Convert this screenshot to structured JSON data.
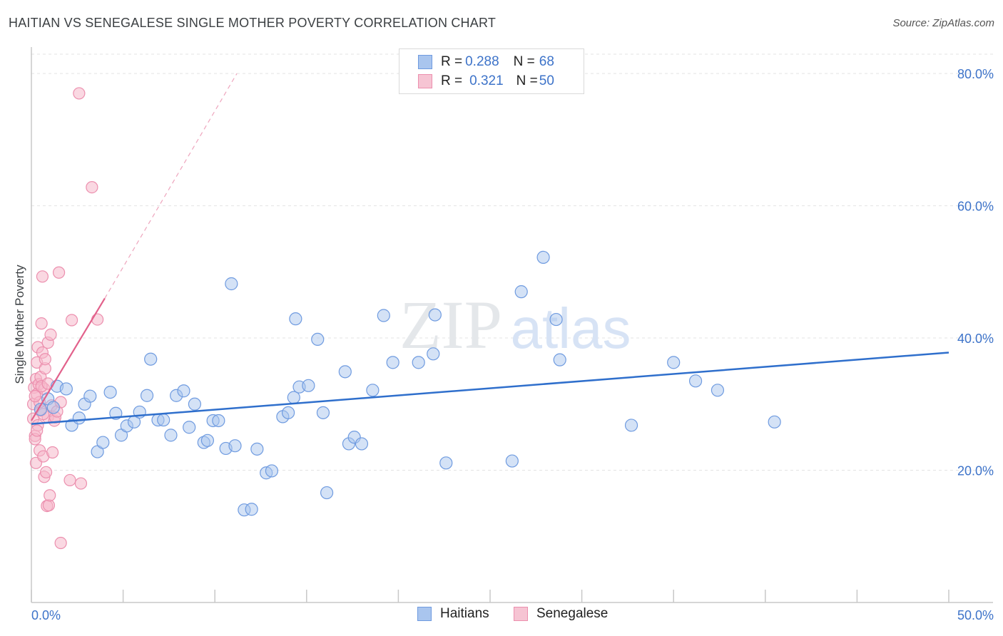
{
  "title": "HAITIAN VS SENEGALESE SINGLE MOTHER POVERTY CORRELATION CHART",
  "source": "Source: ZipAtlas.com",
  "watermark": {
    "zip": "ZIP",
    "atlas": "atlas"
  },
  "legend": {
    "rows": [
      {
        "r_label": "R = ",
        "r_value": "0.288",
        "n_label": "N = ",
        "n_value": "68"
      },
      {
        "r_label": "R = ",
        "r_value": "0.321",
        "n_label": "N = ",
        "n_value": "50"
      }
    ]
  },
  "bottom_legend": {
    "haitians": "Haitians",
    "senegalese": "Senegalese"
  },
  "colors": {
    "blue_fill": "#a9c5ee",
    "blue_stroke": "#6f9be0",
    "blue_line": "#2f6fcc",
    "pink_fill": "#f6b8cb",
    "pink_stroke": "#ec8fae",
    "pink_line": "#e2618b",
    "tick_text": "#3d73c9",
    "grid": "#e3e3e3"
  },
  "chart_data": {
    "type": "scatter",
    "title": "HAITIAN VS SENEGALESE SINGLE MOTHER POVERTY CORRELATION CHART",
    "xlabel": "",
    "ylabel": "Single Mother Poverty",
    "xlim": [
      0,
      50
    ],
    "ylim": [
      0,
      84
    ],
    "x_tick_labels": [
      "0.0%",
      "50.0%"
    ],
    "y_ticks": [
      20,
      40,
      60,
      80
    ],
    "y_tick_labels": [
      "20.0%",
      "40.0%",
      "60.0%",
      "80.0%"
    ],
    "grid": true,
    "legend_position": "top-center",
    "series": [
      {
        "name": "Haitians",
        "r": 0.288,
        "n": 68,
        "trend": {
          "x": [
            0,
            50
          ],
          "y": [
            27.0,
            37.8
          ],
          "style": "solid"
        },
        "points": [
          [
            0.5,
            29.2
          ],
          [
            0.9,
            30.8
          ],
          [
            1.2,
            29.5
          ],
          [
            1.4,
            32.7
          ],
          [
            1.9,
            32.3
          ],
          [
            2.2,
            26.8
          ],
          [
            2.6,
            27.9
          ],
          [
            2.9,
            30.0
          ],
          [
            3.2,
            31.2
          ],
          [
            3.6,
            22.8
          ],
          [
            3.9,
            24.2
          ],
          [
            4.3,
            31.8
          ],
          [
            4.6,
            28.6
          ],
          [
            4.9,
            25.3
          ],
          [
            5.2,
            26.7
          ],
          [
            5.6,
            27.3
          ],
          [
            5.9,
            28.8
          ],
          [
            6.3,
            31.3
          ],
          [
            6.5,
            36.8
          ],
          [
            6.9,
            27.6
          ],
          [
            7.2,
            27.6
          ],
          [
            7.6,
            25.3
          ],
          [
            7.9,
            31.3
          ],
          [
            8.3,
            32.0
          ],
          [
            8.6,
            26.5
          ],
          [
            8.9,
            30.0
          ],
          [
            9.4,
            24.2
          ],
          [
            9.6,
            24.5
          ],
          [
            9.9,
            27.5
          ],
          [
            10.2,
            27.5
          ],
          [
            10.6,
            23.3
          ],
          [
            10.9,
            48.2
          ],
          [
            11.1,
            23.7
          ],
          [
            11.6,
            14.0
          ],
          [
            12.0,
            14.1
          ],
          [
            12.3,
            23.2
          ],
          [
            12.8,
            19.6
          ],
          [
            13.1,
            19.9
          ],
          [
            13.7,
            28.1
          ],
          [
            14.0,
            28.7
          ],
          [
            14.3,
            31.0
          ],
          [
            14.6,
            32.6
          ],
          [
            15.1,
            32.8
          ],
          [
            15.6,
            39.8
          ],
          [
            15.9,
            28.7
          ],
          [
            16.1,
            16.6
          ],
          [
            17.1,
            34.9
          ],
          [
            17.3,
            24.0
          ],
          [
            17.6,
            25.0
          ],
          [
            18.0,
            24.0
          ],
          [
            18.6,
            32.1
          ],
          [
            19.2,
            43.4
          ],
          [
            19.7,
            36.3
          ],
          [
            21.1,
            36.3
          ],
          [
            21.9,
            37.6
          ],
          [
            22.0,
            43.5
          ],
          [
            22.6,
            21.1
          ],
          [
            26.2,
            21.4
          ],
          [
            26.7,
            47.0
          ],
          [
            27.9,
            52.2
          ],
          [
            28.6,
            42.8
          ],
          [
            28.8,
            36.7
          ],
          [
            32.7,
            26.8
          ],
          [
            35.0,
            36.3
          ],
          [
            36.2,
            33.5
          ],
          [
            37.4,
            32.1
          ],
          [
            40.5,
            27.3
          ],
          [
            14.4,
            42.9
          ]
        ]
      },
      {
        "name": "Senegalese",
        "r": 0.321,
        "n": 50,
        "trend": {
          "x": [
            0,
            4.0
          ],
          "y": [
            27.5,
            46.0
          ],
          "style": "solid",
          "dash_extension_to": [
            11.2,
            80.0
          ]
        },
        "points": [
          [
            0.1,
            30.0
          ],
          [
            0.1,
            27.8
          ],
          [
            0.15,
            32.5
          ],
          [
            0.2,
            25.2
          ],
          [
            0.2,
            24.7
          ],
          [
            0.25,
            33.8
          ],
          [
            0.25,
            21.1
          ],
          [
            0.3,
            31.5
          ],
          [
            0.3,
            36.3
          ],
          [
            0.35,
            38.6
          ],
          [
            0.35,
            26.8
          ],
          [
            0.4,
            33.0
          ],
          [
            0.45,
            23.0
          ],
          [
            0.5,
            34.1
          ],
          [
            0.5,
            29.0
          ],
          [
            0.55,
            42.2
          ],
          [
            0.6,
            49.3
          ],
          [
            0.6,
            37.8
          ],
          [
            0.65,
            22.1
          ],
          [
            0.7,
            32.3
          ],
          [
            0.7,
            19.0
          ],
          [
            0.75,
            35.4
          ],
          [
            0.75,
            36.8
          ],
          [
            0.8,
            19.7
          ],
          [
            0.85,
            14.6
          ],
          [
            0.9,
            28.0
          ],
          [
            0.9,
            39.3
          ],
          [
            0.95,
            14.7
          ],
          [
            1.0,
            16.2
          ],
          [
            1.05,
            40.5
          ],
          [
            1.1,
            29.8
          ],
          [
            1.15,
            22.7
          ],
          [
            1.25,
            27.5
          ],
          [
            1.3,
            28.0
          ],
          [
            1.4,
            28.9
          ],
          [
            1.5,
            49.9
          ],
          [
            1.6,
            30.3
          ],
          [
            2.1,
            18.5
          ],
          [
            2.2,
            42.7
          ],
          [
            2.6,
            77.0
          ],
          [
            2.7,
            18.0
          ],
          [
            3.3,
            62.8
          ],
          [
            3.6,
            42.8
          ],
          [
            1.6,
            9.0
          ],
          [
            0.3,
            26.0
          ],
          [
            0.45,
            30.3
          ],
          [
            0.55,
            32.7
          ],
          [
            0.2,
            31.2
          ],
          [
            0.65,
            28.5
          ],
          [
            0.9,
            33.1
          ]
        ]
      }
    ]
  }
}
